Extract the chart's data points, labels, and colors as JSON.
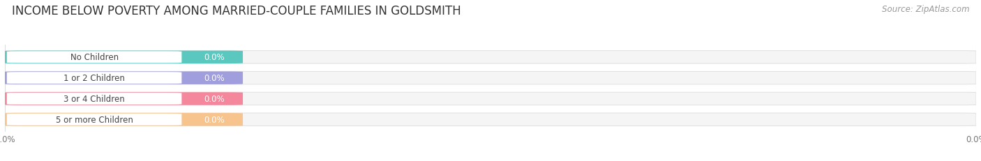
{
  "title": "INCOME BELOW POVERTY AMONG MARRIED-COUPLE FAMILIES IN GOLDSMITH",
  "source": "Source: ZipAtlas.com",
  "categories": [
    "No Children",
    "1 or 2 Children",
    "3 or 4 Children",
    "5 or more Children"
  ],
  "values": [
    0.0,
    0.0,
    0.0,
    0.0
  ],
  "bar_colors": [
    "#5bc8c0",
    "#a09edc",
    "#f4879c",
    "#f7c48e"
  ],
  "bar_bg_color": "#f5f5f5",
  "value_labels": [
    "0.0%",
    "0.0%",
    "0.0%",
    "0.0%"
  ],
  "xlim_max": 1.0,
  "background_color": "#ffffff",
  "title_fontsize": 12,
  "label_fontsize": 8.5,
  "source_fontsize": 8.5,
  "tick_label_color": "#777777",
  "title_color": "#333333",
  "cat_text_color": "#444444",
  "val_text_color": "#ffffff",
  "grid_color": "#dddddd",
  "bar_edge_color": "#e0e0e0"
}
